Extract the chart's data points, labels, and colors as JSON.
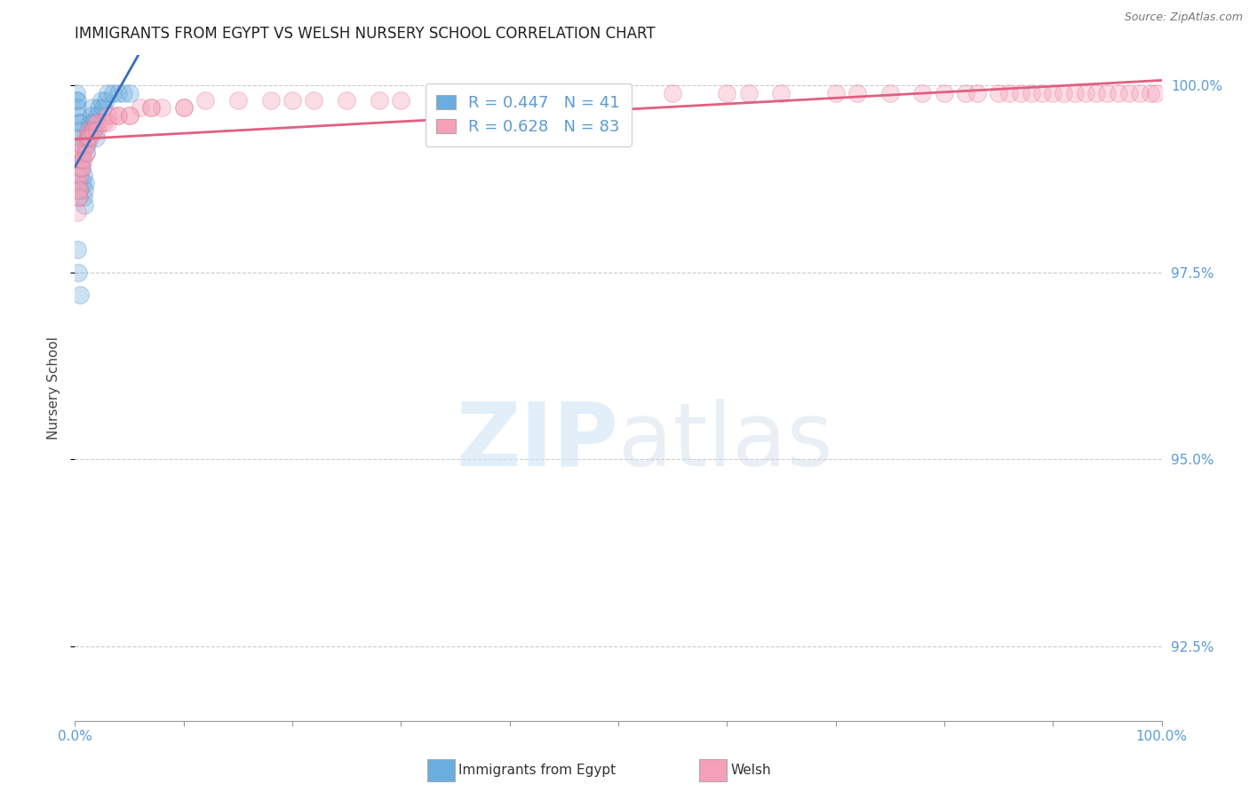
{
  "title": "IMMIGRANTS FROM EGYPT VS WELSH NURSERY SCHOOL CORRELATION CHART",
  "source": "Source: ZipAtlas.com",
  "ylabel": "Nursery School",
  "legend_entries": [
    {
      "label": "Immigrants from Egypt",
      "R": 0.447,
      "N": 41,
      "color": "#8ab4e0"
    },
    {
      "label": "Welsh",
      "R": 0.628,
      "N": 83,
      "color": "#f4a0b5"
    }
  ],
  "blue_scatter_x": [
    0.1,
    0.15,
    0.2,
    0.25,
    0.3,
    0.35,
    0.4,
    0.45,
    0.5,
    0.55,
    0.6,
    0.65,
    0.7,
    0.75,
    0.8,
    0.85,
    0.9,
    0.95,
    1.0,
    1.1,
    1.2,
    1.3,
    1.4,
    1.5,
    1.6,
    1.7,
    1.8,
    1.9,
    2.0,
    2.2,
    2.4,
    2.6,
    2.8,
    3.0,
    3.5,
    4.0,
    4.5,
    5.0,
    0.2,
    0.3,
    0.5
  ],
  "blue_scatter_y": [
    99.8,
    99.9,
    99.7,
    99.8,
    99.6,
    99.5,
    99.4,
    99.3,
    99.5,
    99.2,
    98.9,
    99.0,
    98.7,
    98.8,
    98.5,
    98.6,
    98.4,
    98.7,
    99.1,
    99.2,
    99.3,
    99.4,
    99.5,
    99.6,
    99.7,
    99.5,
    99.4,
    99.3,
    99.6,
    99.7,
    99.8,
    99.7,
    99.8,
    99.9,
    99.9,
    99.9,
    99.9,
    99.9,
    97.8,
    97.5,
    97.2
  ],
  "pink_scatter_x": [
    0.1,
    0.15,
    0.2,
    0.25,
    0.3,
    0.35,
    0.4,
    0.45,
    0.5,
    0.6,
    0.7,
    0.8,
    0.9,
    1.0,
    1.1,
    1.2,
    1.3,
    1.5,
    1.7,
    1.9,
    2.1,
    2.4,
    2.7,
    3.0,
    3.5,
    4.0,
    5.0,
    6.0,
    7.0,
    8.0,
    10.0,
    12.0,
    15.0,
    18.0,
    20.0,
    22.0,
    25.0,
    28.0,
    30.0,
    35.0,
    40.0,
    45.0,
    50.0,
    55.0,
    60.0,
    62.0,
    65.0,
    70.0,
    72.0,
    75.0,
    78.0,
    80.0,
    82.0,
    83.0,
    85.0,
    86.0,
    87.0,
    88.0,
    89.0,
    90.0,
    91.0,
    92.0,
    93.0,
    94.0,
    95.0,
    96.0,
    97.0,
    98.0,
    99.0,
    99.5,
    0.2,
    0.3,
    0.4,
    0.6,
    0.8,
    1.0,
    1.4,
    2.0,
    3.0,
    4.0,
    5.0,
    7.0,
    10.0
  ],
  "pink_scatter_y": [
    99.0,
    99.1,
    98.8,
    99.0,
    98.7,
    98.6,
    98.5,
    98.8,
    98.9,
    99.0,
    99.1,
    99.2,
    99.3,
    99.2,
    99.3,
    99.4,
    99.3,
    99.4,
    99.4,
    99.5,
    99.5,
    99.5,
    99.5,
    99.6,
    99.6,
    99.6,
    99.6,
    99.7,
    99.7,
    99.7,
    99.7,
    99.8,
    99.8,
    99.8,
    99.8,
    99.8,
    99.8,
    99.8,
    99.8,
    99.8,
    99.8,
    99.9,
    99.9,
    99.9,
    99.9,
    99.9,
    99.9,
    99.9,
    99.9,
    99.9,
    99.9,
    99.9,
    99.9,
    99.9,
    99.9,
    99.9,
    99.9,
    99.9,
    99.9,
    99.9,
    99.9,
    99.9,
    99.9,
    99.9,
    99.9,
    99.9,
    99.9,
    99.9,
    99.9,
    99.9,
    98.3,
    98.5,
    98.6,
    98.9,
    99.0,
    99.1,
    99.3,
    99.4,
    99.5,
    99.6,
    99.6,
    99.7,
    99.7
  ],
  "xlim": [
    0,
    100
  ],
  "ylim": [
    91.5,
    100.4
  ],
  "yticks": [
    92.5,
    95.0,
    97.5,
    100.0
  ],
  "xticks": [
    0,
    10,
    20,
    30,
    40,
    50,
    60,
    70,
    80,
    90,
    100
  ],
  "scatter_size": 200,
  "scatter_alpha": 0.35,
  "blue_color": "#6aaee0",
  "blue_edge_color": "#5590c8",
  "blue_line_color": "#3a6fba",
  "pink_color": "#f5a0b8",
  "pink_edge_color": "#e07090",
  "pink_line_color": "#e06080",
  "grid_color": "#cccccc",
  "tick_color": "#5b9bd5",
  "background_color": "#ffffff",
  "title_fontsize": 12,
  "axis_label_fontsize": 11,
  "tick_fontsize": 11,
  "source_fontsize": 9
}
